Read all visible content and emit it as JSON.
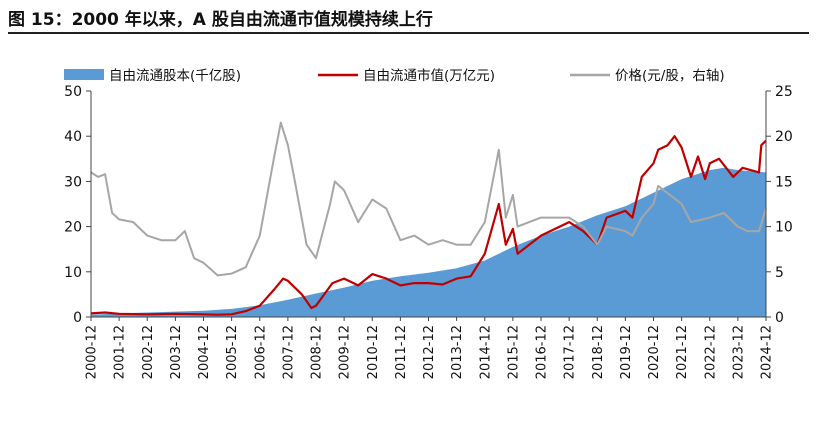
{
  "figure": {
    "title": "图 15：2000 年以来，A 股自由流通市值规模持续上行"
  },
  "chart_data": {
    "type": "area+line",
    "x_start": "2000-12",
    "x_end": "2024-12",
    "x_tick_labels": [
      "2000-12",
      "2001-12",
      "2002-12",
      "2003-12",
      "2004-12",
      "2005-12",
      "2006-12",
      "2007-12",
      "2008-12",
      "2009-12",
      "2010-12",
      "2011-12",
      "2012-12",
      "2013-12",
      "2014-12",
      "2015-12",
      "2016-12",
      "2017-12",
      "2018-12",
      "2019-12",
      "2020-12",
      "2021-12",
      "2022-12",
      "2023-12",
      "2024-12"
    ],
    "y_left": {
      "min": 0,
      "max": 50,
      "ticks": [
        0,
        10,
        20,
        30,
        40,
        50
      ]
    },
    "y_right": {
      "min": 0,
      "max": 25,
      "ticks": [
        0,
        5,
        10,
        15,
        20,
        25
      ]
    },
    "legend": "top",
    "series": [
      {
        "name": "自由流通股本(千亿股)",
        "kind": "area",
        "axis": "left",
        "color": "#5b9bd5",
        "points": [
          [
            "2000-12",
            0.5
          ],
          [
            "2001-12",
            0.8
          ],
          [
            "2002-12",
            1.0
          ],
          [
            "2003-12",
            1.2
          ],
          [
            "2004-12",
            1.4
          ],
          [
            "2005-12",
            1.8
          ],
          [
            "2006-06",
            2.2
          ],
          [
            "2006-12",
            2.6
          ],
          [
            "2007-12",
            3.8
          ],
          [
            "2008-12",
            5.2
          ],
          [
            "2009-12",
            6.5
          ],
          [
            "2010-12",
            8.0
          ],
          [
            "2011-12",
            9.0
          ],
          [
            "2012-12",
            9.8
          ],
          [
            "2013-12",
            10.8
          ],
          [
            "2014-12",
            12.5
          ],
          [
            "2015-12",
            15.5
          ],
          [
            "2016-12",
            18.0
          ],
          [
            "2017-12",
            20.0
          ],
          [
            "2018-12",
            22.5
          ],
          [
            "2019-12",
            24.5
          ],
          [
            "2020-12",
            27.5
          ],
          [
            "2021-12",
            30.5
          ],
          [
            "2022-12",
            32.5
          ],
          [
            "2023-06",
            33.0
          ],
          [
            "2023-12",
            32.5
          ],
          [
            "2024-12",
            32.0
          ]
        ]
      },
      {
        "name": "自由流通市值(万亿元)",
        "kind": "line",
        "axis": "left",
        "color": "#c00000",
        "points": [
          [
            "2000-12",
            0.8
          ],
          [
            "2001-06",
            1.0
          ],
          [
            "2001-12",
            0.7
          ],
          [
            "2002-12",
            0.6
          ],
          [
            "2003-12",
            0.7
          ],
          [
            "2004-12",
            0.6
          ],
          [
            "2005-06",
            0.5
          ],
          [
            "2005-12",
            0.6
          ],
          [
            "2006-06",
            1.3
          ],
          [
            "2006-12",
            2.5
          ],
          [
            "2007-06",
            6.0
          ],
          [
            "2007-10",
            8.5
          ],
          [
            "2007-12",
            8.0
          ],
          [
            "2008-06",
            5.0
          ],
          [
            "2008-10",
            2.0
          ],
          [
            "2008-12",
            2.5
          ],
          [
            "2009-07",
            7.5
          ],
          [
            "2009-12",
            8.5
          ],
          [
            "2010-06",
            7.0
          ],
          [
            "2010-12",
            9.5
          ],
          [
            "2011-06",
            8.5
          ],
          [
            "2011-12",
            7.0
          ],
          [
            "2012-06",
            7.5
          ],
          [
            "2012-12",
            7.5
          ],
          [
            "2013-06",
            7.2
          ],
          [
            "2013-12",
            8.5
          ],
          [
            "2014-06",
            9.0
          ],
          [
            "2014-12",
            14.0
          ],
          [
            "2015-06",
            25.0
          ],
          [
            "2015-09",
            16.0
          ],
          [
            "2015-12",
            19.5
          ],
          [
            "2016-02",
            14.0
          ],
          [
            "2016-12",
            18.0
          ],
          [
            "2017-12",
            21.0
          ],
          [
            "2018-06",
            19.0
          ],
          [
            "2018-12",
            16.0
          ],
          [
            "2019-04",
            22.0
          ],
          [
            "2019-12",
            23.5
          ],
          [
            "2020-03",
            22.0
          ],
          [
            "2020-07",
            31.0
          ],
          [
            "2020-12",
            34.0
          ],
          [
            "2021-02",
            37.0
          ],
          [
            "2021-06",
            38.0
          ],
          [
            "2021-09",
            40.0
          ],
          [
            "2021-12",
            37.5
          ],
          [
            "2022-04",
            31.0
          ],
          [
            "2022-07",
            35.5
          ],
          [
            "2022-10",
            30.5
          ],
          [
            "2022-12",
            34.0
          ],
          [
            "2023-04",
            35.0
          ],
          [
            "2023-10",
            31.0
          ],
          [
            "2024-02",
            33.0
          ],
          [
            "2024-09",
            32.0
          ],
          [
            "2024-10",
            38.0
          ],
          [
            "2024-12",
            39.0
          ]
        ]
      },
      {
        "name": "价格(元/股，右轴)",
        "kind": "line",
        "axis": "right",
        "color": "#a6a6a6",
        "points": [
          [
            "2000-12",
            16.0
          ],
          [
            "2001-03",
            15.5
          ],
          [
            "2001-06",
            15.8
          ],
          [
            "2001-09",
            11.5
          ],
          [
            "2001-12",
            10.8
          ],
          [
            "2002-06",
            10.5
          ],
          [
            "2002-12",
            9.0
          ],
          [
            "2003-06",
            8.5
          ],
          [
            "2003-12",
            8.5
          ],
          [
            "2004-04",
            9.5
          ],
          [
            "2004-08",
            6.5
          ],
          [
            "2004-12",
            6.0
          ],
          [
            "2005-06",
            4.6
          ],
          [
            "2005-12",
            4.8
          ],
          [
            "2006-06",
            5.5
          ],
          [
            "2006-12",
            9.0
          ],
          [
            "2007-06",
            17.5
          ],
          [
            "2007-09",
            21.5
          ],
          [
            "2007-12",
            19.0
          ],
          [
            "2008-03",
            15.0
          ],
          [
            "2008-08",
            8.0
          ],
          [
            "2008-12",
            6.5
          ],
          [
            "2009-06",
            12.5
          ],
          [
            "2009-08",
            15.0
          ],
          [
            "2009-12",
            14.0
          ],
          [
            "2010-06",
            10.5
          ],
          [
            "2010-12",
            13.0
          ],
          [
            "2011-06",
            12.0
          ],
          [
            "2011-12",
            8.5
          ],
          [
            "2012-06",
            9.0
          ],
          [
            "2012-12",
            8.0
          ],
          [
            "2013-06",
            8.5
          ],
          [
            "2013-12",
            8.0
          ],
          [
            "2014-06",
            8.0
          ],
          [
            "2014-12",
            10.5
          ],
          [
            "2015-06",
            18.5
          ],
          [
            "2015-09",
            11.0
          ],
          [
            "2015-12",
            13.5
          ],
          [
            "2016-02",
            10.0
          ],
          [
            "2016-12",
            11.0
          ],
          [
            "2017-12",
            11.0
          ],
          [
            "2018-06",
            10.0
          ],
          [
            "2018-12",
            8.0
          ],
          [
            "2019-04",
            10.0
          ],
          [
            "2019-12",
            9.5
          ],
          [
            "2020-03",
            9.0
          ],
          [
            "2020-07",
            11.0
          ],
          [
            "2020-12",
            12.5
          ],
          [
            "2021-02",
            14.5
          ],
          [
            "2021-12",
            12.5
          ],
          [
            "2022-04",
            10.5
          ],
          [
            "2022-12",
            11.0
          ],
          [
            "2023-06",
            11.5
          ],
          [
            "2023-12",
            10.0
          ],
          [
            "2024-04",
            9.5
          ],
          [
            "2024-09",
            9.5
          ],
          [
            "2024-12",
            12.0
          ]
        ]
      }
    ]
  }
}
